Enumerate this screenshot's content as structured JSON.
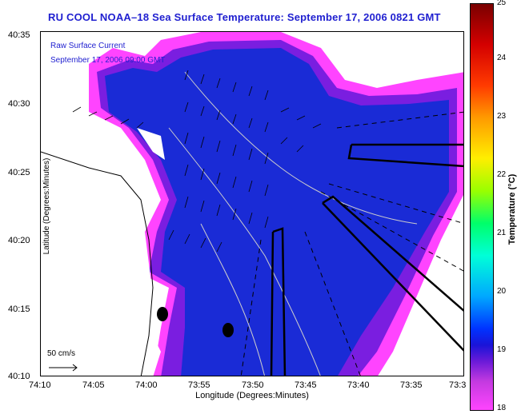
{
  "title": "RU COOL  NOAA–18  Sea Surface Temperature:  September 17, 2006 0821 GMT",
  "legend": {
    "current_label": "Raw Surface Current",
    "current_time": "September 17, 2006 09:00 GMT",
    "scale_label": "50 cm/s"
  },
  "axes": {
    "xlabel": "Longitude (Degrees:Minutes)",
    "ylabel": "Latitude (Degrees:Minutes)",
    "x_ticks": [
      "74:10",
      "74:05",
      "74:00",
      "73:55",
      "73:50",
      "73:45",
      "73:40",
      "73:35",
      "73:3"
    ],
    "y_ticks": [
      "40:35",
      "40:30",
      "40:25",
      "40:20",
      "40:15",
      "40:10"
    ]
  },
  "colorbar": {
    "label": "Temperature (°C)",
    "ticks": [
      "25",
      "24",
      "23",
      "22",
      "21",
      "20",
      "19",
      "18"
    ],
    "range": [
      18,
      25
    ]
  },
  "colors": {
    "title": "#1f1fd0",
    "ocean_warm": "#1a2bd6",
    "ocean_cool": "#ff44ff",
    "ocean_mid": "#6a1ad8"
  }
}
